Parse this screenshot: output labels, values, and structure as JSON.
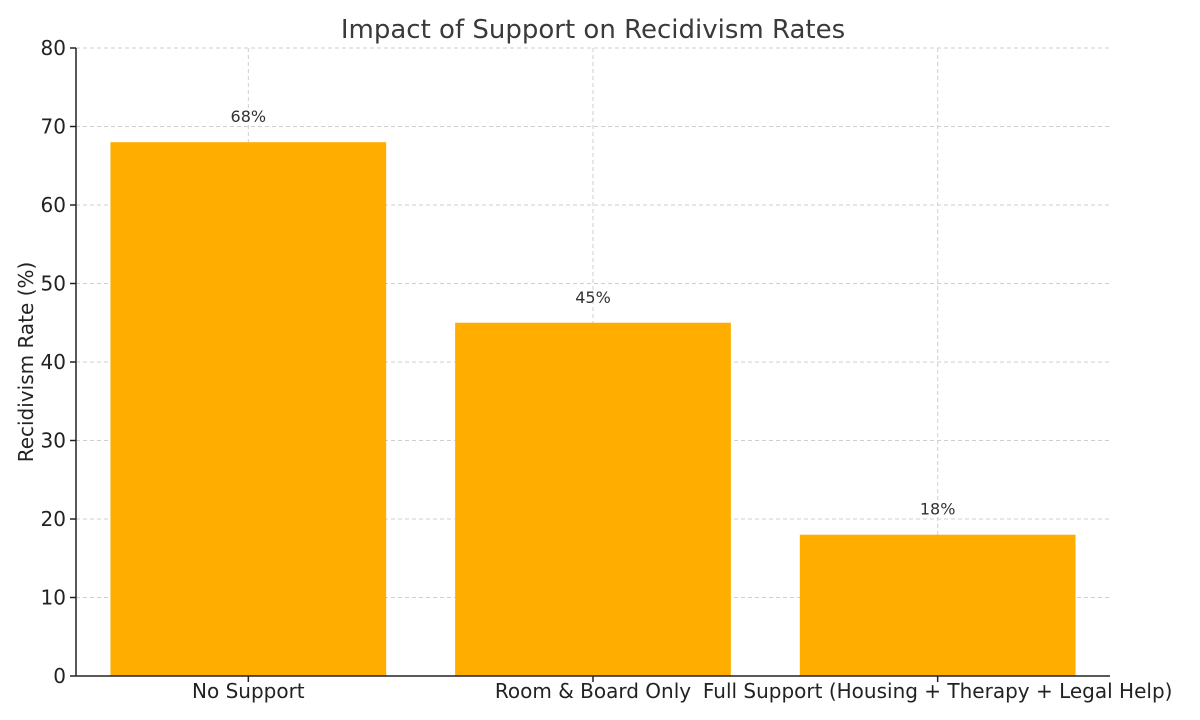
{
  "chart_data": {
    "type": "bar",
    "title": "Impact of Support on Recidivism Rates",
    "xlabel": "",
    "ylabel": "Recidivism Rate (%)",
    "categories": [
      "No Support",
      "Room & Board Only",
      "Full Support (Housing + Therapy + Legal Help)"
    ],
    "values": [
      68,
      45,
      18
    ],
    "data_labels": [
      "68%",
      "45%",
      "18%"
    ],
    "ylim": [
      0,
      80
    ],
    "yticks": [
      0,
      10,
      20,
      30,
      40,
      50,
      60,
      70,
      80
    ],
    "grid": true,
    "colors": {
      "bar": "#FFAE00"
    }
  }
}
